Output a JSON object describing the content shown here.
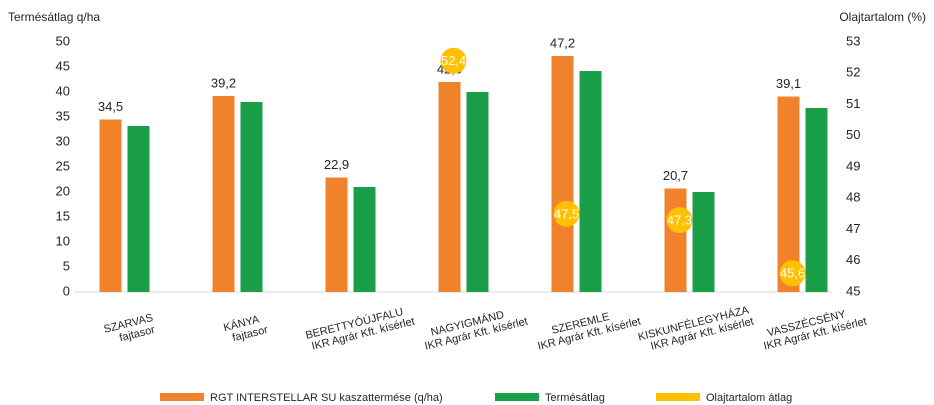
{
  "chart_data": {
    "type": "bar",
    "y_label": "Termésátlag q/ha",
    "y2_label": "Olajtartalom (%)",
    "categories": [
      [
        "SZARVAS",
        "fajtasor"
      ],
      [
        "KÁNYA",
        "fajtasor"
      ],
      [
        "BERETTYÓÚJFALU",
        "IKR Agrár Kft. kísérlet"
      ],
      [
        "NAGYIGMÁND",
        "IKR Agrár Kft. kísérlet"
      ],
      [
        "SZEREMLE",
        "IKR Agrár Kft. kísérlet"
      ],
      [
        "KISKUNFÉLEGYHÁZA",
        "IKR Agrár Kft. kísérlet"
      ],
      [
        "VASSZÉCSÉNY",
        "IKR Agrár Kft. kísérlet"
      ]
    ],
    "series": [
      {
        "name": "RGT INTERSTELLAR SU kaszattermése (q/ha)",
        "color": "#f0822c",
        "values": [
          34.5,
          39.2,
          22.9,
          42.0,
          47.2,
          20.7,
          39.1
        ],
        "value_labels": [
          "34,5",
          "39,2",
          "22,9",
          "42,0",
          "47,2",
          "20,7",
          "39,1"
        ]
      },
      {
        "name": "Termésátlag",
        "color": "#1a9f48",
        "values": [
          33.2,
          38.0,
          21.0,
          40.0,
          44.2,
          20.0,
          36.8
        ]
      },
      {
        "name": "Olajtartalom átlag",
        "color": "#ffc000",
        "axis": "y2",
        "values": [
          null,
          null,
          null,
          52.4,
          47.5,
          47.3,
          45.6
        ],
        "value_labels": [
          null,
          null,
          null,
          "52,4",
          "47,5",
          "47,3",
          "45,6"
        ]
      }
    ],
    "ylim": [
      0,
      50
    ],
    "yticks": [
      0,
      5,
      10,
      15,
      20,
      25,
      30,
      35,
      40,
      45,
      50
    ],
    "y2lim": [
      45,
      53
    ],
    "y2ticks": [
      45,
      46,
      47,
      48,
      49,
      50,
      51,
      52,
      53
    ]
  }
}
